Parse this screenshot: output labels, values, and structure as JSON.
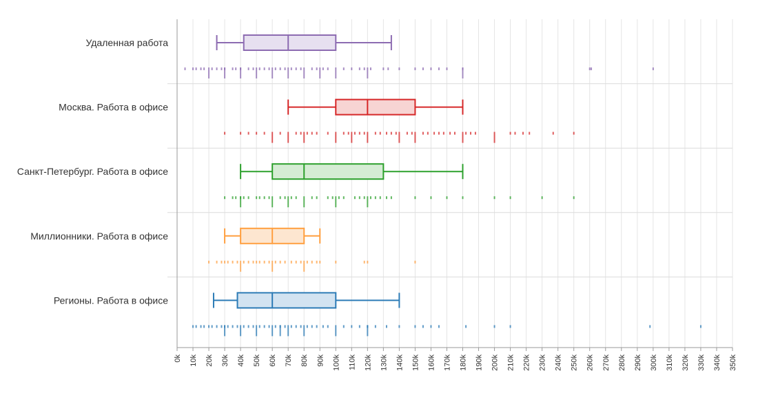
{
  "chart_data": {
    "type": "boxplot",
    "orientation": "horizontal",
    "title": "",
    "xlabel": "",
    "ylabel": "",
    "xlim": [
      0,
      350000
    ],
    "x_tick_step": 10000,
    "x_tick_labels": [
      "0k",
      "10k",
      "20k",
      "30k",
      "40k",
      "50k",
      "60k",
      "70k",
      "80k",
      "90k",
      "100k",
      "110k",
      "120k",
      "130k",
      "140k",
      "150k",
      "160k",
      "170k",
      "180k",
      "190k",
      "200k",
      "210k",
      "220k",
      "230k",
      "240k",
      "250k",
      "260k",
      "270k",
      "280k",
      "290k",
      "300k",
      "310k",
      "320k",
      "330k",
      "340k",
      "350k"
    ],
    "grid": true,
    "legend": "none",
    "categories": [
      {
        "name": "Удаленная работа",
        "color": "#8c6bb1",
        "fill": "#e7e0f0",
        "whisker_low": 25000,
        "q1": 42000,
        "median": 70000,
        "q3": 100000,
        "whisker_high": 135000,
        "points_short": [
          5000,
          10000,
          12000,
          15000,
          17000,
          22000,
          25000,
          28000,
          30000,
          35000,
          37000,
          40000,
          45000,
          48000,
          52000,
          55000,
          58000,
          62000,
          65000,
          68000,
          72000,
          75000,
          78000,
          85000,
          88000,
          92000,
          95000,
          105000,
          110000,
          115000,
          118000,
          122000,
          130000,
          133000,
          140000,
          150000,
          155000,
          160000,
          165000,
          170000,
          180000,
          260000,
          261000,
          300000
        ],
        "points_long": [
          20000,
          30000,
          40000,
          50000,
          60000,
          70000,
          80000,
          90000,
          100000,
          120000,
          180000
        ]
      },
      {
        "name": "Москва. Работа в офисе",
        "color": "#d62728",
        "fill": "#f7d4d3",
        "whisker_low": 70000,
        "q1": 100000,
        "median": 120000,
        "q3": 150000,
        "whisker_high": 180000,
        "points_short": [
          30000,
          40000,
          45000,
          50000,
          55000,
          65000,
          75000,
          78000,
          82000,
          85000,
          88000,
          95000,
          105000,
          108000,
          112000,
          115000,
          118000,
          125000,
          128000,
          132000,
          135000,
          138000,
          145000,
          148000,
          155000,
          158000,
          162000,
          165000,
          168000,
          172000,
          175000,
          182000,
          185000,
          188000,
          210000,
          213000,
          218000,
          222000,
          237000,
          250000
        ],
        "points_long": [
          60000,
          70000,
          80000,
          100000,
          110000,
          120000,
          140000,
          150000,
          180000,
          200000
        ]
      },
      {
        "name": "Санкт-Петербург. Работа в офисе",
        "color": "#2ca02c",
        "fill": "#d5ecd4",
        "whisker_low": 40000,
        "q1": 60000,
        "median": 80000,
        "q3": 130000,
        "whisker_high": 180000,
        "points_short": [
          30000,
          35000,
          37000,
          40000,
          42000,
          45000,
          50000,
          52000,
          55000,
          58000,
          65000,
          68000,
          72000,
          75000,
          85000,
          88000,
          95000,
          98000,
          102000,
          105000,
          112000,
          115000,
          118000,
          122000,
          125000,
          128000,
          132000,
          135000,
          150000,
          160000,
          170000,
          180000,
          200000,
          210000,
          230000,
          250000
        ],
        "points_long": [
          40000,
          60000,
          70000,
          80000,
          100000,
          120000
        ]
      },
      {
        "name": "Миллионники. Работа в офисе",
        "color": "#ff9f40",
        "fill": "#fde6d0",
        "whisker_low": 30000,
        "q1": 40000,
        "median": 60000,
        "q3": 80000,
        "whisker_high": 90000,
        "points_short": [
          20000,
          25000,
          28000,
          30000,
          32000,
          35000,
          38000,
          42000,
          45000,
          48000,
          50000,
          52000,
          55000,
          58000,
          62000,
          65000,
          68000,
          72000,
          75000,
          78000,
          82000,
          85000,
          88000,
          90000,
          100000,
          118000,
          120000,
          150000
        ],
        "points_long": [
          40000,
          60000,
          80000
        ]
      },
      {
        "name": "Регионы. Работа в офисе",
        "color": "#2c7bb6",
        "fill": "#d2e3f1",
        "whisker_low": 23000,
        "q1": 38000,
        "median": 60000,
        "q3": 100000,
        "whisker_high": 140000,
        "points_short": [
          10000,
          12000,
          15000,
          17000,
          20000,
          22000,
          25000,
          28000,
          30000,
          32000,
          35000,
          38000,
          42000,
          45000,
          48000,
          52000,
          55000,
          58000,
          62000,
          65000,
          68000,
          72000,
          75000,
          78000,
          82000,
          85000,
          88000,
          92000,
          95000,
          105000,
          110000,
          115000,
          120000,
          125000,
          132000,
          140000,
          150000,
          155000,
          160000,
          165000,
          182000,
          200000,
          210000,
          298000,
          330000
        ],
        "points_long": [
          30000,
          40000,
          50000,
          60000,
          65000,
          70000,
          80000,
          100000,
          120000
        ]
      }
    ]
  }
}
